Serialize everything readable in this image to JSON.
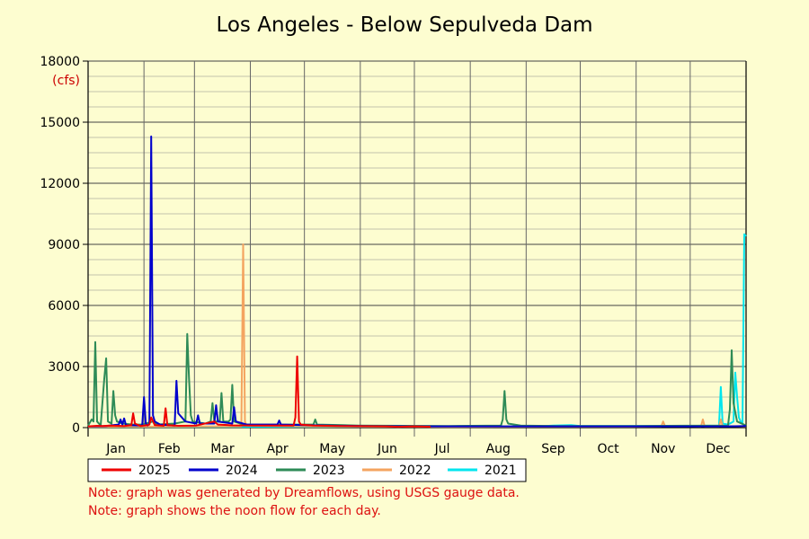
{
  "chart_data": {
    "type": "line",
    "title": "Los Angeles - Below Sepulveda Dam",
    "y_unit": "(cfs)",
    "ylim": [
      0,
      18000
    ],
    "y_ticks": [
      0,
      3000,
      6000,
      9000,
      12000,
      15000,
      18000
    ],
    "y_tick_labels": [
      "0",
      "3000",
      "6000",
      "9000",
      "12000",
      "15000",
      "18000"
    ],
    "xlim": [
      0,
      365
    ],
    "months": [
      "Jan",
      "Feb",
      "Mar",
      "Apr",
      "May",
      "Jun",
      "Jul",
      "Aug",
      "Sep",
      "Oct",
      "Nov",
      "Dec"
    ],
    "month_starts": [
      0,
      31,
      59,
      90,
      120,
      151,
      181,
      212,
      243,
      273,
      304,
      334
    ],
    "grid": true,
    "legend_position": "bottom",
    "series": [
      {
        "name": "2025",
        "color": "#ee0000",
        "points": [
          [
            0,
            60
          ],
          [
            5,
            90
          ],
          [
            8,
            80
          ],
          [
            12,
            100
          ],
          [
            20,
            80
          ],
          [
            24,
            120
          ],
          [
            25,
            700
          ],
          [
            26,
            200
          ],
          [
            29,
            80
          ],
          [
            33,
            120
          ],
          [
            34,
            150
          ],
          [
            35,
            500
          ],
          [
            37,
            120
          ],
          [
            42,
            90
          ],
          [
            43,
            950
          ],
          [
            44,
            120
          ],
          [
            50,
            90
          ],
          [
            60,
            100
          ],
          [
            70,
            300
          ],
          [
            72,
            150
          ],
          [
            80,
            110
          ],
          [
            90,
            100
          ],
          [
            114,
            100
          ],
          [
            115,
            500
          ],
          [
            116,
            3500
          ],
          [
            117,
            300
          ],
          [
            118,
            150
          ],
          [
            125,
            100
          ],
          [
            140,
            80
          ],
          [
            150,
            70
          ],
          [
            165,
            60
          ],
          [
            172,
            40
          ],
          [
            181,
            60
          ],
          [
            190,
            40
          ]
        ]
      },
      {
        "name": "2024",
        "color": "#0000cc",
        "points": [
          [
            0,
            60
          ],
          [
            10,
            80
          ],
          [
            17,
            150
          ],
          [
            18,
            400
          ],
          [
            19,
            150
          ],
          [
            20,
            450
          ],
          [
            21,
            120
          ],
          [
            30,
            100
          ],
          [
            31,
            1500
          ],
          [
            32,
            200
          ],
          [
            33,
            100
          ],
          [
            34,
            200
          ],
          [
            35,
            14300
          ],
          [
            36,
            600
          ],
          [
            37,
            300
          ],
          [
            40,
            150
          ],
          [
            48,
            100
          ],
          [
            49,
            2300
          ],
          [
            50,
            700
          ],
          [
            52,
            500
          ],
          [
            54,
            300
          ],
          [
            60,
            200
          ],
          [
            61,
            600
          ],
          [
            62,
            200
          ],
          [
            70,
            200
          ],
          [
            71,
            1100
          ],
          [
            72,
            300
          ],
          [
            80,
            200
          ],
          [
            81,
            1000
          ],
          [
            82,
            300
          ],
          [
            88,
            150
          ],
          [
            105,
            150
          ],
          [
            106,
            350
          ],
          [
            107,
            150
          ],
          [
            120,
            120
          ],
          [
            150,
            80
          ],
          [
            180,
            60
          ],
          [
            213,
            60
          ],
          [
            243,
            60
          ],
          [
            273,
            60
          ],
          [
            304,
            60
          ],
          [
            334,
            60
          ],
          [
            355,
            60
          ],
          [
            365,
            80
          ]
        ]
      },
      {
        "name": "2023",
        "color": "#2e8b57",
        "points": [
          [
            0,
            100
          ],
          [
            2,
            400
          ],
          [
            3,
            300
          ],
          [
            4,
            4200
          ],
          [
            5,
            300
          ],
          [
            7,
            100
          ],
          [
            9,
            2400
          ],
          [
            10,
            3400
          ],
          [
            11,
            300
          ],
          [
            13,
            200
          ],
          [
            14,
            1800
          ],
          [
            15,
            600
          ],
          [
            16,
            300
          ],
          [
            19,
            200
          ],
          [
            25,
            150
          ],
          [
            30,
            150
          ],
          [
            36,
            300
          ],
          [
            38,
            150
          ],
          [
            48,
            200
          ],
          [
            54,
            300
          ],
          [
            55,
            4600
          ],
          [
            56,
            2400
          ],
          [
            57,
            600
          ],
          [
            58,
            300
          ],
          [
            65,
            200
          ],
          [
            68,
            300
          ],
          [
            69,
            1200
          ],
          [
            70,
            300
          ],
          [
            73,
            300
          ],
          [
            74,
            1700
          ],
          [
            75,
            300
          ],
          [
            78,
            300
          ],
          [
            79,
            400
          ],
          [
            80,
            2100
          ],
          [
            81,
            300
          ],
          [
            86,
            150
          ],
          [
            90,
            150
          ],
          [
            114,
            150
          ],
          [
            125,
            150
          ],
          [
            126,
            400
          ],
          [
            127,
            150
          ],
          [
            150,
            100
          ],
          [
            200,
            80
          ],
          [
            229,
            100
          ],
          [
            230,
            400
          ],
          [
            231,
            1800
          ],
          [
            232,
            400
          ],
          [
            233,
            200
          ],
          [
            240,
            100
          ],
          [
            260,
            80
          ],
          [
            300,
            80
          ],
          [
            355,
            100
          ],
          [
            356,
            900
          ],
          [
            357,
            3800
          ],
          [
            358,
            1200
          ],
          [
            360,
            300
          ],
          [
            365,
            100
          ]
        ]
      },
      {
        "name": "2022",
        "color": "#f4a460",
        "points": [
          [
            0,
            40
          ],
          [
            20,
            50
          ],
          [
            40,
            50
          ],
          [
            85,
            60
          ],
          [
            86,
            9000
          ],
          [
            87,
            300
          ],
          [
            88,
            100
          ],
          [
            120,
            60
          ],
          [
            200,
            40
          ],
          [
            250,
            50
          ],
          [
            300,
            50
          ],
          [
            318,
            60
          ],
          [
            319,
            300
          ],
          [
            320,
            80
          ],
          [
            340,
            60
          ],
          [
            341,
            400
          ],
          [
            342,
            60
          ],
          [
            350,
            60
          ],
          [
            351,
            400
          ],
          [
            352,
            80
          ],
          [
            365,
            60
          ]
        ]
      },
      {
        "name": "2021",
        "color": "#00e5ee",
        "points": [
          [
            0,
            40
          ],
          [
            100,
            40
          ],
          [
            250,
            60
          ],
          [
            258,
            100
          ],
          [
            268,
            120
          ],
          [
            273,
            80
          ],
          [
            330,
            80
          ],
          [
            350,
            100
          ],
          [
            351,
            2000
          ],
          [
            352,
            200
          ],
          [
            355,
            150
          ],
          [
            358,
            300
          ],
          [
            359,
            2700
          ],
          [
            360,
            1500
          ],
          [
            361,
            500
          ],
          [
            362,
            300
          ],
          [
            363,
            200
          ],
          [
            364,
            9500
          ],
          [
            365,
            9400
          ]
        ]
      }
    ],
    "notes": [
      "Note: graph was generated by Dreamflows, using USGS gauge data.",
      "Note: graph shows the noon flow for each day."
    ]
  }
}
